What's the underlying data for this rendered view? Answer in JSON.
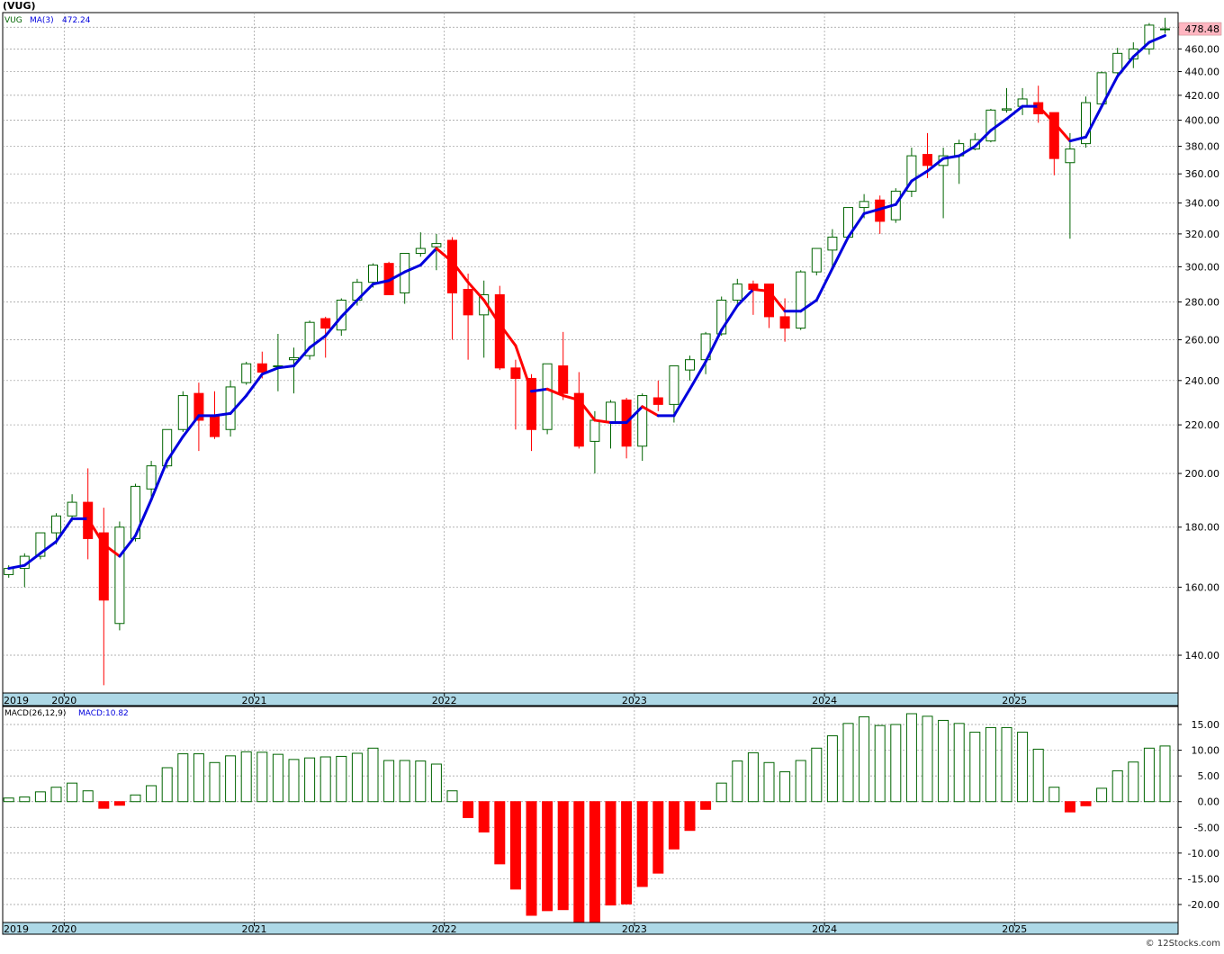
{
  "header": {
    "title": "(VUG)"
  },
  "credit": "© 12Stocks.com",
  "colors": {
    "up": "#006400",
    "down": "#ff0000",
    "ma_up": "#0000dd",
    "ma_down": "#ff0000",
    "axis_band": "#add8e6",
    "grid": "#999999",
    "last_badge": "#ffb6c1"
  },
  "chart_data": [
    {
      "type": "candlestick",
      "title": "(VUG)",
      "legend": {
        "ticker": "VUG",
        "ma_label": "MA(3)",
        "ma_value": "472.24"
      },
      "y_scale": "log",
      "ylim": [
        130,
        494
      ],
      "y_ticks": [
        "140.00",
        "160.00",
        "180.00",
        "200.00",
        "220.00",
        "240.00",
        "260.00",
        "280.00",
        "300.00",
        "320.00",
        "340.00",
        "360.00",
        "380.00",
        "400.00",
        "420.00",
        "440.00",
        "460.00",
        "480.00"
      ],
      "last_price": "478.48",
      "x_labels": [
        {
          "label": "2019",
          "index": -0.6
        },
        {
          "label": "2020",
          "index": 4
        },
        {
          "label": "2021",
          "index": 16
        },
        {
          "label": "2022",
          "index": 28
        },
        {
          "label": "2023",
          "index": 40
        },
        {
          "label": "2024",
          "index": 52
        },
        {
          "label": "2025",
          "index": 64
        }
      ],
      "candles": [
        {
          "date": "2019-09",
          "o": 164.0,
          "h": 167.0,
          "l": 163.0,
          "c": 166.0
        },
        {
          "date": "2019-10",
          "o": 166.0,
          "h": 171.0,
          "l": 160.0,
          "c": 170.0
        },
        {
          "date": "2019-11",
          "o": 170.0,
          "h": 178.0,
          "l": 169.0,
          "c": 178.0
        },
        {
          "date": "2019-12",
          "o": 178.0,
          "h": 185.0,
          "l": 174.0,
          "c": 184.0
        },
        {
          "date": "2020-01",
          "o": 184.0,
          "h": 192.0,
          "l": 182.0,
          "c": 189.0
        },
        {
          "date": "2020-02",
          "o": 189.0,
          "h": 202.0,
          "l": 169.0,
          "c": 176.0
        },
        {
          "date": "2020-03",
          "o": 178.0,
          "h": 187.0,
          "l": 132.0,
          "c": 156.0
        },
        {
          "date": "2020-04",
          "o": 149.0,
          "h": 182.0,
          "l": 147.0,
          "c": 180.0
        },
        {
          "date": "2020-05",
          "o": 176.0,
          "h": 196.0,
          "l": 175.0,
          "c": 195.0
        },
        {
          "date": "2020-06",
          "o": 194.0,
          "h": 205.0,
          "l": 190.0,
          "c": 203.0
        },
        {
          "date": "2020-07",
          "o": 203.0,
          "h": 218.0,
          "l": 202.0,
          "c": 218.0
        },
        {
          "date": "2020-08",
          "o": 218.0,
          "h": 235.0,
          "l": 217.0,
          "c": 233.0
        },
        {
          "date": "2020-09",
          "o": 234.0,
          "h": 239.0,
          "l": 209.0,
          "c": 222.0
        },
        {
          "date": "2020-10",
          "o": 224.0,
          "h": 235.0,
          "l": 214.0,
          "c": 215.0
        },
        {
          "date": "2020-11",
          "o": 218.0,
          "h": 240.0,
          "l": 215.0,
          "c": 237.0
        },
        {
          "date": "2020-12",
          "o": 239.0,
          "h": 249.0,
          "l": 238.0,
          "c": 248.0
        },
        {
          "date": "2021-01",
          "o": 248.0,
          "h": 254.0,
          "l": 241.0,
          "c": 244.0
        },
        {
          "date": "2021-02",
          "o": 247.0,
          "h": 263.0,
          "l": 235.0,
          "c": 247.0
        },
        {
          "date": "2021-03",
          "o": 250.0,
          "h": 256.0,
          "l": 234.0,
          "c": 251.0
        },
        {
          "date": "2021-04",
          "o": 252.0,
          "h": 270.0,
          "l": 250.0,
          "c": 269.0
        },
        {
          "date": "2021-05",
          "o": 271.0,
          "h": 272.0,
          "l": 251.0,
          "c": 266.0
        },
        {
          "date": "2021-06",
          "o": 265.0,
          "h": 282.0,
          "l": 262.0,
          "c": 281.0
        },
        {
          "date": "2021-07",
          "o": 281.0,
          "h": 293.0,
          "l": 278.0,
          "c": 291.0
        },
        {
          "date": "2021-08",
          "o": 291.0,
          "h": 302.0,
          "l": 288.0,
          "c": 301.0
        },
        {
          "date": "2021-09",
          "o": 302.0,
          "h": 303.0,
          "l": 284.0,
          "c": 284.0
        },
        {
          "date": "2021-10",
          "o": 285.0,
          "h": 308.0,
          "l": 279.0,
          "c": 308.0
        },
        {
          "date": "2021-11",
          "o": 308.0,
          "h": 321.0,
          "l": 306.0,
          "c": 311.0
        },
        {
          "date": "2021-12",
          "o": 312.0,
          "h": 320.0,
          "l": 298.0,
          "c": 314.0
        },
        {
          "date": "2022-01",
          "o": 316.0,
          "h": 318.0,
          "l": 260.0,
          "c": 285.0
        },
        {
          "date": "2022-02",
          "o": 287.0,
          "h": 296.0,
          "l": 250.0,
          "c": 273.0
        },
        {
          "date": "2022-03",
          "o": 273.0,
          "h": 292.0,
          "l": 251.0,
          "c": 284.0
        },
        {
          "date": "2022-04",
          "o": 284.0,
          "h": 289.0,
          "l": 245.0,
          "c": 246.0
        },
        {
          "date": "2022-05",
          "o": 246.0,
          "h": 250.0,
          "l": 218.0,
          "c": 241.0
        },
        {
          "date": "2022-06",
          "o": 241.0,
          "h": 243.0,
          "l": 209.0,
          "c": 218.0
        },
        {
          "date": "2022-07",
          "o": 218.0,
          "h": 248.0,
          "l": 216.0,
          "c": 248.0
        },
        {
          "date": "2022-08",
          "o": 247.0,
          "h": 264.0,
          "l": 231.0,
          "c": 234.0
        },
        {
          "date": "2022-09",
          "o": 234.0,
          "h": 244.0,
          "l": 210.0,
          "c": 211.0
        },
        {
          "date": "2022-10",
          "o": 213.0,
          "h": 226.0,
          "l": 200.0,
          "c": 222.0
        },
        {
          "date": "2022-11",
          "o": 221.0,
          "h": 231.0,
          "l": 210.0,
          "c": 230.0
        },
        {
          "date": "2022-12",
          "o": 231.0,
          "h": 232.0,
          "l": 206.0,
          "c": 211.0
        },
        {
          "date": "2023-01",
          "o": 211.0,
          "h": 234.0,
          "l": 205.0,
          "c": 233.0
        },
        {
          "date": "2023-02",
          "o": 232.0,
          "h": 240.0,
          "l": 226.0,
          "c": 229.0
        },
        {
          "date": "2023-03",
          "o": 229.0,
          "h": 247.0,
          "l": 221.0,
          "c": 247.0
        },
        {
          "date": "2023-04",
          "o": 245.0,
          "h": 252.0,
          "l": 240.0,
          "c": 250.0
        },
        {
          "date": "2023-05",
          "o": 250.0,
          "h": 264.0,
          "l": 243.0,
          "c": 263.0
        },
        {
          "date": "2023-06",
          "o": 263.0,
          "h": 283.0,
          "l": 262.0,
          "c": 281.0
        },
        {
          "date": "2023-07",
          "o": 281.0,
          "h": 293.0,
          "l": 278.0,
          "c": 290.0
        },
        {
          "date": "2023-08",
          "o": 290.0,
          "h": 292.0,
          "l": 273.0,
          "c": 287.0
        },
        {
          "date": "2023-09",
          "o": 290.0,
          "h": 290.0,
          "l": 266.0,
          "c": 272.0
        },
        {
          "date": "2023-10",
          "o": 272.0,
          "h": 282.0,
          "l": 259.0,
          "c": 266.0
        },
        {
          "date": "2023-11",
          "o": 266.0,
          "h": 298.0,
          "l": 265.0,
          "c": 297.0
        },
        {
          "date": "2023-12",
          "o": 297.0,
          "h": 311.0,
          "l": 295.0,
          "c": 311.0
        },
        {
          "date": "2024-01",
          "o": 310.0,
          "h": 323.0,
          "l": 298.0,
          "c": 318.0
        },
        {
          "date": "2024-02",
          "o": 318.0,
          "h": 337.0,
          "l": 317.0,
          "c": 337.0
        },
        {
          "date": "2024-03",
          "o": 337.0,
          "h": 346.0,
          "l": 330.0,
          "c": 341.0
        },
        {
          "date": "2024-04",
          "o": 342.0,
          "h": 345.0,
          "l": 320.0,
          "c": 328.0
        },
        {
          "date": "2024-05",
          "o": 329.0,
          "h": 350.0,
          "l": 327.0,
          "c": 348.0
        },
        {
          "date": "2024-06",
          "o": 348.0,
          "h": 379.0,
          "l": 344.0,
          "c": 373.0
        },
        {
          "date": "2024-07",
          "o": 374.0,
          "h": 390.0,
          "l": 357.0,
          "c": 366.0
        },
        {
          "date": "2024-08",
          "o": 366.0,
          "h": 379.0,
          "l": 330.0,
          "c": 373.0
        },
        {
          "date": "2024-09",
          "o": 373.0,
          "h": 385.0,
          "l": 353.0,
          "c": 382.0
        },
        {
          "date": "2024-10",
          "o": 378.0,
          "h": 390.0,
          "l": 377.0,
          "c": 385.0
        },
        {
          "date": "2024-11",
          "o": 384.0,
          "h": 409.0,
          "l": 383.0,
          "c": 408.0
        },
        {
          "date": "2024-12",
          "o": 408.0,
          "h": 426.0,
          "l": 406.0,
          "c": 409.0
        },
        {
          "date": "2025-01",
          "o": 411.0,
          "h": 426.0,
          "l": 404.0,
          "c": 417.0
        },
        {
          "date": "2025-02",
          "o": 414.0,
          "h": 428.0,
          "l": 398.0,
          "c": 405.0
        },
        {
          "date": "2025-03",
          "o": 406.0,
          "h": 406.0,
          "l": 359.0,
          "c": 371.0
        },
        {
          "date": "2025-04",
          "o": 368.0,
          "h": 390.0,
          "l": 317.0,
          "c": 378.0
        },
        {
          "date": "2025-05",
          "o": 382.0,
          "h": 419.0,
          "l": 379.0,
          "c": 414.0
        },
        {
          "date": "2025-06",
          "o": 413.0,
          "h": 440.0,
          "l": 410.0,
          "c": 439.0
        },
        {
          "date": "2025-07",
          "o": 439.0,
          "h": 461.0,
          "l": 437.0,
          "c": 456.0
        },
        {
          "date": "2025-08",
          "o": 451.0,
          "h": 466.0,
          "l": 443.0,
          "c": 460.0
        },
        {
          "date": "2025-09",
          "o": 460.0,
          "h": 484.0,
          "l": 455.0,
          "c": 482.0
        },
        {
          "date": "2025-10",
          "o": 478.0,
          "h": 489.0,
          "l": 474.0,
          "c": 478.48
        }
      ],
      "ma": [
        166,
        167,
        171,
        175,
        183,
        183,
        174,
        170,
        177,
        190,
        205,
        215,
        224,
        224,
        225,
        233,
        243,
        246,
        247,
        256,
        262,
        272,
        281,
        290,
        292,
        297,
        301,
        311,
        303,
        291,
        281,
        268,
        257,
        235,
        236,
        233,
        231,
        222,
        221,
        221,
        228,
        224,
        224,
        236,
        249,
        265,
        278,
        287,
        286,
        275,
        275,
        281,
        299,
        318,
        333,
        336,
        339,
        355,
        362,
        371,
        373,
        380,
        392,
        401,
        411,
        411,
        398,
        384,
        387,
        411,
        436,
        453,
        466,
        472.24
      ]
    },
    {
      "type": "bar",
      "title": "MACD(26,12,9)",
      "legend": {
        "label": "MACD(26,12,9)",
        "value_label": "MACD:10.82"
      },
      "ylim": [
        -23.5,
        18.5
      ],
      "y_ticks": [
        "15.00",
        "10.00",
        "5.00",
        "0.00",
        "-5.00",
        "-10.00",
        "-15.00",
        "-20.00"
      ],
      "values": [
        0.7,
        0.9,
        1.9,
        2.8,
        3.6,
        2.1,
        -1.3,
        -0.7,
        1.3,
        3.1,
        6.6,
        9.3,
        9.3,
        7.6,
        8.9,
        9.7,
        9.6,
        9.2,
        8.2,
        8.5,
        8.7,
        8.8,
        9.4,
        10.4,
        8.0,
        8.0,
        7.9,
        7.3,
        2.1,
        -3.1,
        -5.9,
        -12.1,
        -17.0,
        -22.1,
        -21.2,
        -21.0,
        -23.5,
        -23.4,
        -20.1,
        -19.9,
        -16.5,
        -13.9,
        -9.2,
        -5.6,
        -1.5,
        3.6,
        7.9,
        9.5,
        7.6,
        5.8,
        8.0,
        10.4,
        12.8,
        15.2,
        16.5,
        14.8,
        15.0,
        17.1,
        16.6,
        15.8,
        15.2,
        13.5,
        14.4,
        14.4,
        13.5,
        10.2,
        2.8,
        -2.0,
        -0.8,
        2.6,
        6.0,
        7.7,
        10.4,
        10.82
      ]
    }
  ]
}
